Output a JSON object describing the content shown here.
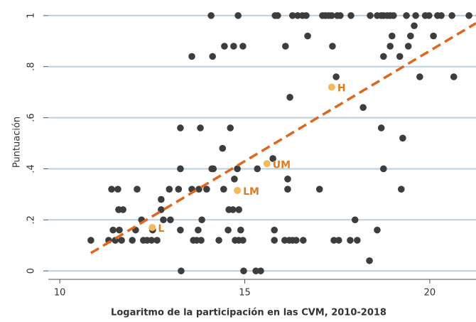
{
  "chart_data": {
    "type": "scatter",
    "xlabel": "Logaritmo de la participación en las CVM, 2010-2018",
    "ylabel": "Puntuación",
    "xlim": [
      9.69,
      21.25
    ],
    "ylim": [
      -0.033,
      1.047
    ],
    "xticks": [
      10,
      15,
      20
    ],
    "yticks": [
      0,
      {
        "value": 0.2,
        "label": ".2"
      },
      {
        "value": 0.4,
        "label": ".4"
      },
      {
        "value": 0.6,
        "label": ".6"
      },
      {
        "value": 0.8,
        "label": ".8"
      },
      1
    ],
    "grid": true,
    "points": {
      "color": "#3d3d3d",
      "x": [
        14.09,
        14.82,
        15.82,
        15.89,
        16.29,
        16.43,
        16.56,
        16.66,
        17.1,
        17.18,
        17.27,
        17.35,
        17.5,
        17.58,
        17.87,
        18.39,
        18.58,
        18.69,
        18.75,
        18.85,
        18.93,
        19.02,
        19.37,
        19.62,
        19.88,
        19.98,
        20.21,
        20.31,
        20.6,
        21.06,
        19.58,
        16.7,
        18.98,
        19.48,
        20.1,
        14.45,
        14.7,
        14.95,
        16.1,
        17.37,
        18.93,
        19.42,
        13.57,
        14.13,
        18.75,
        19.19,
        17.47,
        19.73,
        20.65,
        16.22,
        18.2,
        13.26,
        13.8,
        14.61,
        18.69,
        19.27,
        14.4,
        15.76,
        13.26,
        14.11,
        14.15,
        14.8,
        15.34,
        18.75,
        14.72,
        16.16,
        11.4,
        11.57,
        12.09,
        12.96,
        13.21,
        13.57,
        13.76,
        13.97,
        14.43,
        16.16,
        17.02,
        19.23,
        12.74,
        11.59,
        11.71,
        12.74,
        14.57,
        14.68,
        14.84,
        12.21,
        12.8,
        12.99,
        13.84,
        17.98,
        11.44,
        11.61,
        12.05,
        12.51,
        13.26,
        13.74,
        14.55,
        14.89,
        15.8,
        18.58,
        10.84,
        11.32,
        11.5,
        11.67,
        11.96,
        12.26,
        12.36,
        12.48,
        12.63,
        13.61,
        13.7,
        13.82,
        14.3,
        14.74,
        14.84,
        14.95,
        15.8,
        16.08,
        16.2,
        16.29,
        16.39,
        16.58,
        17.41,
        17.54,
        17.85,
        18.04,
        18.37,
        13.28,
        14.97,
        15.3,
        15.43
      ],
      "y": [
        1,
        1,
        1,
        1,
        1,
        1,
        1,
        1,
        1,
        1,
        1,
        1,
        1,
        1,
        1,
        1,
        1,
        1,
        1,
        1,
        1,
        1,
        1,
        1,
        1,
        1,
        1,
        1,
        1,
        1,
        0.96,
        0.92,
        0.92,
        0.92,
        0.92,
        0.88,
        0.88,
        0.88,
        0.88,
        0.88,
        0.88,
        0.88,
        0.84,
        0.84,
        0.84,
        0.84,
        0.76,
        0.76,
        0.76,
        0.68,
        0.64,
        0.56,
        0.56,
        0.56,
        0.56,
        0.52,
        0.48,
        0.44,
        0.4,
        0.4,
        0.4,
        0.4,
        0.4,
        0.4,
        0.36,
        0.36,
        0.32,
        0.32,
        0.32,
        0.32,
        0.32,
        0.32,
        0.32,
        0.32,
        0.32,
        0.32,
        0.32,
        0.32,
        0.28,
        0.24,
        0.24,
        0.24,
        0.24,
        0.24,
        0.24,
        0.2,
        0.2,
        0.2,
        0.2,
        0.2,
        0.16,
        0.16,
        0.16,
        0.16,
        0.16,
        0.16,
        0.16,
        0.16,
        0.16,
        0.16,
        0.12,
        0.12,
        0.12,
        0.12,
        0.12,
        0.12,
        0.12,
        0.12,
        0.12,
        0.12,
        0.12,
        0.12,
        0.12,
        0.12,
        0.12,
        0.12,
        0.12,
        0.12,
        0.12,
        0.12,
        0.12,
        0.12,
        0.12,
        0.12,
        0.12,
        0.12,
        0.04,
        0,
        0,
        0,
        0
      ]
    },
    "highlights": {
      "color": "#f3b95c",
      "label_color": "#e07b22",
      "labels": [
        "L",
        "LM",
        "UM",
        "H"
      ],
      "x": [
        12.5,
        14.8,
        15.6,
        17.35
      ],
      "y": [
        0.17,
        0.315,
        0.42,
        0.72
      ]
    },
    "trend": {
      "color": "#e0661e",
      "x": [
        10.84,
        21.25
      ],
      "y": [
        0.07,
        0.97
      ]
    }
  }
}
